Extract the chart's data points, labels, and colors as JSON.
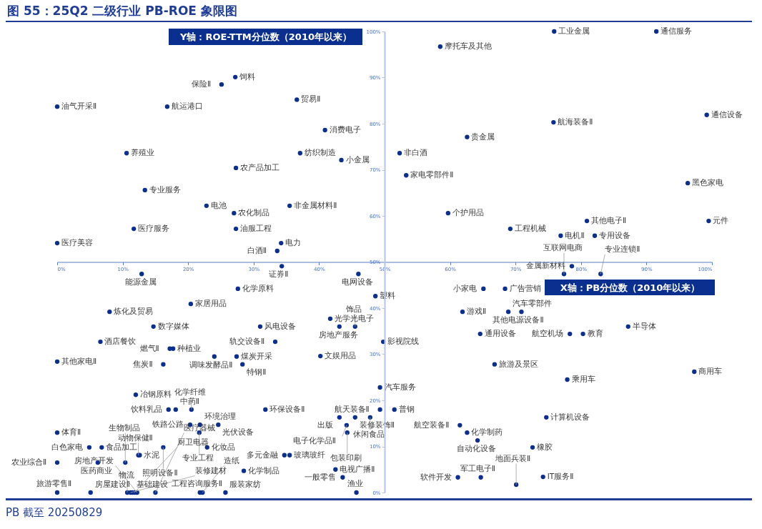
{
  "chart_data": {
    "type": "scatter",
    "title": "图 55：25Q2 二级行业 PB-ROE 象限图",
    "xlabel": "X轴：PB分位数（2010年以来）",
    "ylabel": "Y轴：ROE-TTM分位数（2010年以来）",
    "xlim": [
      0,
      100
    ],
    "ylim": [
      0,
      100
    ],
    "xticks": [
      {
        "value": 0,
        "label": "0%"
      },
      {
        "value": 10,
        "label": "10%"
      },
      {
        "value": 20,
        "label": "20%"
      },
      {
        "value": 30,
        "label": "30%"
      },
      {
        "value": 40,
        "label": "40%"
      },
      {
        "value": 50,
        "label": "50%"
      },
      {
        "value": 60,
        "label": "60%"
      },
      {
        "value": 70,
        "label": "70%"
      },
      {
        "value": 80,
        "label": "80%"
      },
      {
        "value": 90,
        "label": "90%"
      },
      {
        "value": 100,
        "label": "100%"
      }
    ],
    "yticks": [
      {
        "value": 0,
        "label": "0%"
      },
      {
        "value": 10,
        "label": "10%"
      },
      {
        "value": 20,
        "label": "20%"
      },
      {
        "value": 30,
        "label": "30%"
      },
      {
        "value": 40,
        "label": "40%"
      },
      {
        "value": 50,
        "label": "50%"
      },
      {
        "value": 60,
        "label": "60%"
      },
      {
        "value": 70,
        "label": "70%"
      },
      {
        "value": 80,
        "label": "80%"
      },
      {
        "value": 90,
        "label": "90%"
      },
      {
        "value": 100,
        "label": "100%"
      }
    ],
    "marker": "circle",
    "series": [
      {
        "color": "#0b2f8f",
        "x": [
          27.2,
          25.1,
          0,
          16.8,
          36.6,
          10.6,
          27.3,
          13.4,
          22.8,
          27.0,
          35.5,
          11.7,
          27.3,
          0,
          34.2,
          33.6,
          34.3,
          58.5,
          40.9,
          37.1,
          43.4,
          52.3,
          62.6,
          53.3,
          59.7,
          69.2,
          75.9,
          91.5,
          75.8,
          99.2,
          96.3,
          80.9,
          99.5,
          76.9,
          82.1,
          78.6,
          77.4,
          83.0,
          87.2,
          78.3,
          80.3,
          97.3,
          77.9,
          74.7,
          72.6,
          74.2,
          46.0,
          48.6,
          41.7,
          43.1,
          45.5,
          49.8,
          40.2,
          49.3,
          49.3,
          51.5,
          43.1,
          45.5,
          47.8,
          44.2,
          44.3,
          61.5,
          62.6,
          64.2,
          61.9,
          65.1,
          68.4,
          68.9,
          70.9,
          64.6,
          66.8,
          34.7,
          35.5,
          42.5,
          43.6,
          45.7,
          61.2,
          64.7,
          70.1,
          12.9,
          27.6,
          8.0,
          20.4,
          14.7,
          31.0,
          6.6,
          17.2,
          17.7,
          24.0,
          27.4,
          33.3,
          0,
          16.2,
          28.3,
          12.0,
          17.0,
          18.1,
          20.5,
          31.8,
          0,
          20.3,
          21.8,
          24.6,
          21.7,
          4.9,
          6.8,
          6.2,
          12.4,
          12.6,
          16.2,
          22.9,
          0,
          10.4,
          28.5,
          0,
          5.1,
          10.7,
          11.2,
          11.5,
          11.8,
          12.2,
          15.0,
          21.8,
          22.2,
          25.7
        ],
        "values": [
          90.1,
          88.5,
          83.7,
          83.7,
          85.2,
          73.6,
          70.4,
          65.6,
          62.2,
          60.6,
          62.2,
          57.2,
          57.2,
          54.1,
          54.1,
          52.4,
          49.1,
          96.7,
          78.6,
          73.6,
          72.1,
          73.6,
          77.1,
          68.8,
          60.6,
          57.2,
          100,
          100,
          80.3,
          81.9,
          67.1,
          58.9,
          58.9,
          55.7,
          55.7,
          49.1,
          47.4,
          47.4,
          36.0,
          34.4,
          34.4,
          26.2,
          24.5,
          16.3,
          9.8,
          3.4,
          47.4,
          42.6,
          37.7,
          36.0,
          36.0,
          32.7,
          29.6,
          22.8,
          18.0,
          18.0,
          16.3,
          16.3,
          16.3,
          14.6,
          13.0,
          14.6,
          13.0,
          11.3,
          39.2,
          44.2,
          44.2,
          39.2,
          39.2,
          34.4,
          27.8,
          8.1,
          8.1,
          5.0,
          3.3,
          0,
          3.3,
          3.3,
          1.7,
          47.4,
          44.2,
          39.2,
          40.9,
          36.0,
          36.0,
          32.7,
          31.2,
          31.2,
          29.5,
          29.5,
          32.7,
          28.4,
          27.8,
          27.8,
          21.2,
          18.0,
          18.0,
          18.0,
          18.0,
          13.0,
          14.7,
          14.7,
          14.7,
          13.0,
          9.8,
          9.8,
          6.5,
          8.1,
          8.1,
          9.8,
          9.8,
          6.5,
          6.5,
          4.7,
          0,
          0,
          0,
          0,
          0,
          0,
          0,
          0,
          0,
          0,
          0
        ]
      }
    ],
    "annotations": [
      {
        "text": "饲料",
        "x": 27.2,
        "y": 90.1
      },
      {
        "text": "保险Ⅱ",
        "x": 25.1,
        "y": 88.5
      },
      {
        "text": "油气开采Ⅱ",
        "x": 0,
        "y": 83.7
      },
      {
        "text": "航运港口",
        "x": 16.8,
        "y": 83.7
      },
      {
        "text": "贸易Ⅱ",
        "x": 36.6,
        "y": 85.2
      },
      {
        "text": "养殖业",
        "x": 10.6,
        "y": 73.6
      },
      {
        "text": "农产品加工",
        "x": 27.3,
        "y": 70.4
      },
      {
        "text": "专业服务",
        "x": 13.4,
        "y": 65.6
      },
      {
        "text": "电池",
        "x": 22.8,
        "y": 62.2
      },
      {
        "text": "农化制品",
        "x": 27.0,
        "y": 60.6
      },
      {
        "text": "非金属材料Ⅱ",
        "x": 35.5,
        "y": 62.2
      },
      {
        "text": "医疗服务",
        "x": 11.7,
        "y": 57.2
      },
      {
        "text": "油服工程",
        "x": 27.3,
        "y": 57.2
      },
      {
        "text": "医疗美容",
        "x": 0,
        "y": 54.1
      },
      {
        "text": "电力",
        "x": 34.2,
        "y": 54.1
      },
      {
        "text": "白酒Ⅱ",
        "x": 33.6,
        "y": 52.4
      },
      {
        "text": "证券Ⅱ",
        "x": 34.3,
        "y": 49.1
      },
      {
        "text": "摩托车及其他",
        "x": 58.5,
        "y": 96.7
      },
      {
        "text": "消费电子",
        "x": 40.9,
        "y": 78.6
      },
      {
        "text": "纺织制造",
        "x": 37.1,
        "y": 73.6
      },
      {
        "text": "小金属",
        "x": 43.4,
        "y": 72.1
      },
      {
        "text": "非白酒",
        "x": 52.3,
        "y": 73.6
      },
      {
        "text": "贵金属",
        "x": 62.6,
        "y": 77.1
      },
      {
        "text": "家电零部件Ⅱ",
        "x": 53.3,
        "y": 68.8
      },
      {
        "text": "个护用品",
        "x": 59.7,
        "y": 60.6
      },
      {
        "text": "工程机械",
        "x": 69.2,
        "y": 57.2
      },
      {
        "text": "工业金属",
        "x": 75.9,
        "y": 100
      },
      {
        "text": "通信服务",
        "x": 91.5,
        "y": 100
      },
      {
        "text": "航海装备Ⅱ",
        "x": 75.8,
        "y": 80.3
      },
      {
        "text": "通信设备",
        "x": 99.2,
        "y": 81.9
      },
      {
        "text": "黑色家电",
        "x": 96.3,
        "y": 67.1
      },
      {
        "text": "其他电子Ⅱ",
        "x": 80.9,
        "y": 58.9
      },
      {
        "text": "元件",
        "x": 99.5,
        "y": 58.9
      },
      {
        "text": "电机Ⅱ",
        "x": 76.9,
        "y": 55.7
      },
      {
        "text": "专用设备",
        "x": 82.1,
        "y": 55.7
      },
      {
        "text": "金属新材料",
        "x": 78.6,
        "y": 49.1
      },
      {
        "text": "互联网电商",
        "x": 77.4,
        "y": 47.4
      },
      {
        "text": "专业连锁Ⅱ",
        "x": 83.0,
        "y": 47.4
      },
      {
        "text": "半导体",
        "x": 87.2,
        "y": 36.0
      },
      {
        "text": "航空机场",
        "x": 78.3,
        "y": 34.4
      },
      {
        "text": "教育",
        "x": 80.3,
        "y": 34.4
      },
      {
        "text": "商用车",
        "x": 97.3,
        "y": 26.2
      },
      {
        "text": "乘用车",
        "x": 77.9,
        "y": 24.5
      },
      {
        "text": "计算机设备",
        "x": 74.7,
        "y": 16.3
      },
      {
        "text": "橡胶",
        "x": 72.6,
        "y": 9.8
      },
      {
        "text": "IT服务Ⅱ",
        "x": 74.2,
        "y": 3.4
      },
      {
        "text": "电网设备",
        "x": 46.0,
        "y": 47.4
      },
      {
        "text": "塑料",
        "x": 48.6,
        "y": 42.6
      },
      {
        "text": "光学光电子",
        "x": 41.7,
        "y": 37.7
      },
      {
        "text": "房地产服务",
        "x": 43.1,
        "y": 36.0
      },
      {
        "text": "饰品",
        "x": 45.5,
        "y": 36.0
      },
      {
        "text": "影视院线",
        "x": 49.8,
        "y": 32.7
      },
      {
        "text": "文娱用品",
        "x": 40.2,
        "y": 29.6
      },
      {
        "text": "汽车服务",
        "x": 49.3,
        "y": 22.8
      },
      {
        "text": "航天装备Ⅱ",
        "x": 49.3,
        "y": 18.0
      },
      {
        "text": "普钢",
        "x": 51.5,
        "y": 18.0
      },
      {
        "text": "出版",
        "x": 43.1,
        "y": 16.3
      },
      {
        "text": "装修装饰Ⅱ",
        "x": 45.5,
        "y": 16.3
      },
      {
        "text": "休闲食品",
        "x": 47.8,
        "y": 16.3
      },
      {
        "text": "电子化学品Ⅱ",
        "x": 44.2,
        "y": 14.6
      },
      {
        "text": "包装印刷",
        "x": 44.3,
        "y": 13.0
      },
      {
        "text": "航空装备Ⅱ",
        "x": 61.5,
        "y": 14.6
      },
      {
        "text": "化学制药",
        "x": 62.6,
        "y": 13.0
      },
      {
        "text": "自动化设备",
        "x": 64.2,
        "y": 11.3
      },
      {
        "text": "游戏Ⅱ",
        "x": 61.9,
        "y": 39.2
      },
      {
        "text": "小家电",
        "x": 65.1,
        "y": 44.2
      },
      {
        "text": "广告营销",
        "x": 68.4,
        "y": 44.2
      },
      {
        "text": "汽车零部件",
        "x": 68.9,
        "y": 39.2
      },
      {
        "text": "其他电源设备Ⅱ",
        "x": 70.9,
        "y": 39.2
      },
      {
        "text": "通用设备",
        "x": 64.6,
        "y": 34.4
      },
      {
        "text": "旅游及景区",
        "x": 66.8,
        "y": 27.8
      },
      {
        "text": "多元金融",
        "x": 34.7,
        "y": 8.1
      },
      {
        "text": "玻璃玻纤",
        "x": 35.5,
        "y": 8.1
      },
      {
        "text": "电视广播Ⅱ",
        "x": 42.5,
        "y": 5.0
      },
      {
        "text": "一般零售",
        "x": 43.6,
        "y": 3.3
      },
      {
        "text": "渔业",
        "x": 45.7,
        "y": 0
      },
      {
        "text": "软件开发",
        "x": 61.2,
        "y": 3.3
      },
      {
        "text": "军工电子Ⅱ",
        "x": 64.7,
        "y": 3.3
      },
      {
        "text": "地面兵装Ⅱ",
        "x": 70.1,
        "y": 1.7
      },
      {
        "text": "能源金属",
        "x": 12.9,
        "y": 47.4
      },
      {
        "text": "化学原料",
        "x": 27.6,
        "y": 44.2
      },
      {
        "text": "炼化及贸易",
        "x": 8.0,
        "y": 39.2
      },
      {
        "text": "家居用品",
        "x": 20.4,
        "y": 40.9
      },
      {
        "text": "数字媒体",
        "x": 14.7,
        "y": 36.0
      },
      {
        "text": "风电设备",
        "x": 31.0,
        "y": 36.0
      },
      {
        "text": "酒店餐饮",
        "x": 6.6,
        "y": 32.7
      },
      {
        "text": "燃气Ⅱ",
        "x": 17.2,
        "y": 31.2
      },
      {
        "text": "种植业",
        "x": 17.7,
        "y": 31.2
      },
      {
        "text": "调味发酵品Ⅱ",
        "x": 24.0,
        "y": 29.5
      },
      {
        "text": "煤炭开采",
        "x": 27.4,
        "y": 29.5
      },
      {
        "text": "轨交设备Ⅱ",
        "x": 33.3,
        "y": 32.7
      },
      {
        "text": "其他家电Ⅱ",
        "x": 0,
        "y": 28.4
      },
      {
        "text": "焦炭Ⅱ",
        "x": 16.2,
        "y": 27.8
      },
      {
        "text": "特钢Ⅱ",
        "x": 28.3,
        "y": 27.8
      },
      {
        "text": "冶钢原料",
        "x": 12.0,
        "y": 21.2
      },
      {
        "text": "饮料乳品",
        "x": 17.0,
        "y": 18.0
      },
      {
        "text": "中药Ⅱ",
        "x": 18.1,
        "y": 18.0
      },
      {
        "text": "化学纤维",
        "x": 20.5,
        "y": 18.0
      },
      {
        "text": "环保设备Ⅱ",
        "x": 31.8,
        "y": 18.0
      },
      {
        "text": "体育Ⅱ",
        "x": 0,
        "y": 13.0
      },
      {
        "text": "铁路公路",
        "x": 20.3,
        "y": 14.7
      },
      {
        "text": "环境治理",
        "x": 21.8,
        "y": 14.7
      },
      {
        "text": "光伏设备",
        "x": 24.6,
        "y": 14.7
      },
      {
        "text": "专业工程",
        "x": 21.7,
        "y": 13.0
      },
      {
        "text": "白色家电",
        "x": 4.9,
        "y": 9.8
      },
      {
        "text": "食品加工",
        "x": 6.8,
        "y": 9.8
      },
      {
        "text": "医药商业",
        "x": 6.2,
        "y": 6.5
      },
      {
        "text": "动物保健Ⅱ",
        "x": 12.4,
        "y": 8.1
      },
      {
        "text": "水泥",
        "x": 12.6,
        "y": 8.1
      },
      {
        "text": "照明设备Ⅱ",
        "x": 16.2,
        "y": 9.8
      },
      {
        "text": "化妆品",
        "x": 22.9,
        "y": 9.8
      },
      {
        "text": "农业综合Ⅱ",
        "x": 0,
        "y": 6.5
      },
      {
        "text": "生物制品",
        "x": 10.4,
        "y": 6.5
      },
      {
        "text": "化学制品",
        "x": 28.5,
        "y": 4.7
      },
      {
        "text": "旅游零售Ⅱ",
        "x": 0,
        "y": 0
      },
      {
        "text": "房屋建设Ⅱ",
        "x": 5.1,
        "y": 0
      },
      {
        "text": "物流",
        "x": 10.7,
        "y": 0
      },
      {
        "text": "装修建材",
        "x": 11.2,
        "y": 0
      },
      {
        "text": "基础建设",
        "x": 11.5,
        "y": 0
      },
      {
        "text": "厨卫电器",
        "x": 11.8,
        "y": 0
      },
      {
        "text": "房地产开发",
        "x": 12.2,
        "y": 0
      },
      {
        "text": "医疗器械",
        "x": 15.0,
        "y": 0
      },
      {
        "text": "工程咨询服务Ⅱ",
        "x": 21.8,
        "y": 0
      },
      {
        "text": "造纸",
        "x": 22.2,
        "y": 0
      },
      {
        "text": "服装家纺",
        "x": 25.7,
        "y": 0
      },
      "PB 截至 20250829"
    ]
  }
}
